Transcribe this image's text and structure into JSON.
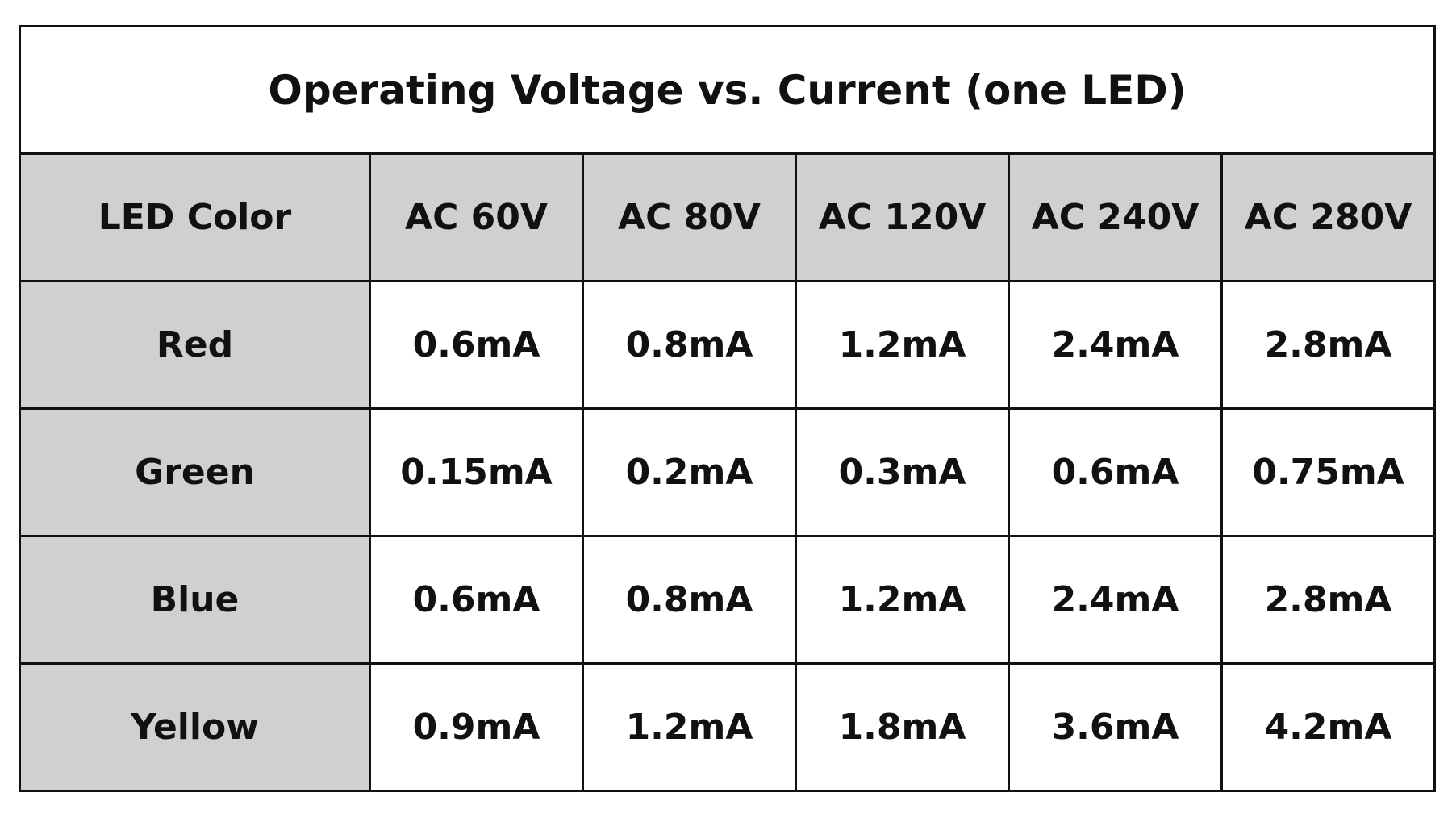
{
  "title": "Operating Voltage vs. Current (one LED)",
  "table": {
    "header": [
      "LED Color",
      "AC 60V",
      "AC 80V",
      "AC 120V",
      "AC 240V",
      "AC 280V"
    ],
    "rows": [
      [
        "Red",
        "0.6mA",
        "0.8mA",
        "1.2mA",
        "2.4mA",
        "2.8mA"
      ],
      [
        "Green",
        "0.15mA",
        "0.2mA",
        "0.3mA",
        "0.6mA",
        "0.75mA"
      ],
      [
        "Blue",
        "0.6mA",
        "0.8mA",
        "1.2mA",
        "2.4mA",
        "2.8mA"
      ],
      [
        "Yellow",
        "0.9mA",
        "1.2mA",
        "1.8mA",
        "3.6mA",
        "4.2mA"
      ]
    ]
  }
}
